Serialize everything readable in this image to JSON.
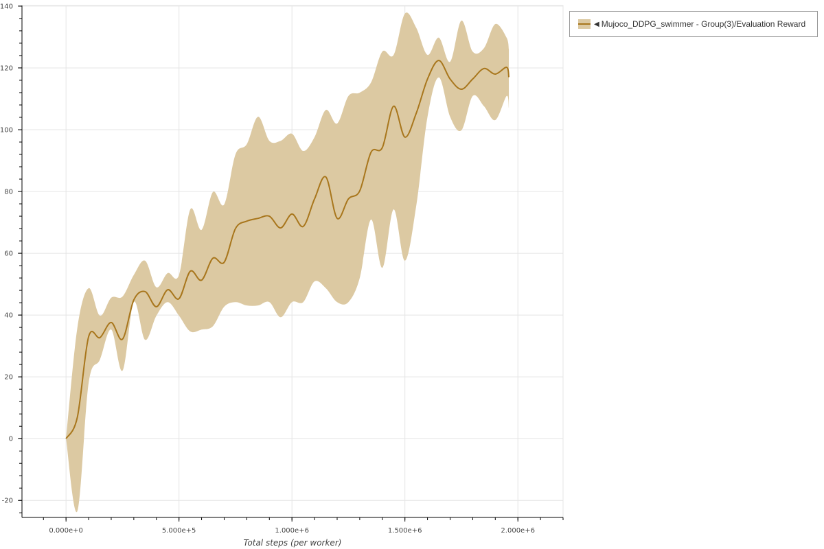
{
  "chart_data": {
    "type": "area",
    "title": "",
    "xlabel": "Total steps (per worker)",
    "ylabel": "",
    "xlim": [
      -195000,
      2200000
    ],
    "ylim": [
      -25.5,
      140.2
    ],
    "grid": true,
    "legend_placement": "outside-top-right",
    "x_ticks": [
      {
        "value": 0,
        "label": "0.000e+0"
      },
      {
        "value": 500000,
        "label": "5.000e+5"
      },
      {
        "value": 1000000,
        "label": "1.000e+6"
      },
      {
        "value": 1500000,
        "label": "1.500e+6"
      },
      {
        "value": 2000000,
        "label": "2.000e+6"
      }
    ],
    "y_ticks": [
      {
        "value": -20,
        "label": "-20"
      },
      {
        "value": 0,
        "label": "0"
      },
      {
        "value": 20,
        "label": "20"
      },
      {
        "value": 40,
        "label": "40"
      },
      {
        "value": 60,
        "label": "60"
      },
      {
        "value": 80,
        "label": "80"
      },
      {
        "value": 100,
        "label": "100"
      },
      {
        "value": 120,
        "label": "120"
      },
      {
        "value": 140,
        "label": "140"
      }
    ],
    "x_minor_step": 100000,
    "y_minor_step": 4,
    "colors": {
      "band": "#dcc9a2",
      "line": "#a8761c",
      "grid": "#e4e4e4"
    },
    "series": [
      {
        "name": "Mujoco_DDPG_swimmer - Group(3)/Evaluation Reward",
        "x": [
          0,
          50000,
          100000,
          150000,
          200000,
          250000,
          300000,
          350000,
          400000,
          450000,
          500000,
          550000,
          600000,
          650000,
          700000,
          750000,
          800000,
          850000,
          900000,
          950000,
          1000000,
          1050000,
          1100000,
          1150000,
          1200000,
          1250000,
          1300000,
          1350000,
          1400000,
          1450000,
          1500000,
          1550000,
          1600000,
          1650000,
          1700000,
          1750000,
          1800000,
          1850000,
          1900000,
          1950000,
          1960000
        ],
        "mean": [
          0,
          6.9,
          33,
          32.7,
          37.6,
          32.2,
          44.9,
          47.6,
          42.7,
          48.2,
          45.3,
          54.2,
          51.3,
          58.4,
          57.1,
          68,
          70.4,
          71.3,
          72,
          68.2,
          72.7,
          68.7,
          77.6,
          84.7,
          71.3,
          77.6,
          80.2,
          92.7,
          94.2,
          107.6,
          97.6,
          105.3,
          116.4,
          122.4,
          116.4,
          113.1,
          116.4,
          119.8,
          118,
          120.2,
          117
        ],
        "upper": [
          0,
          35.8,
          48.7,
          39.8,
          45.6,
          46,
          53,
          57.6,
          49,
          53.6,
          53,
          74.2,
          67.6,
          79.8,
          75.8,
          92,
          95.3,
          104.2,
          96.4,
          96.4,
          98.7,
          93.1,
          97.6,
          106.4,
          102,
          110.9,
          112,
          115.3,
          125.3,
          124.2,
          137.6,
          133,
          124.2,
          129.8,
          122,
          135.3,
          125.3,
          126.4,
          134.2,
          129.8,
          126
        ],
        "lower": [
          0,
          -23.5,
          18,
          25.6,
          35.3,
          22,
          44.2,
          32,
          39.8,
          44.2,
          39.8,
          34.7,
          35.3,
          36.4,
          42.7,
          44.2,
          43.1,
          43.1,
          44.2,
          39.3,
          44.2,
          44.2,
          50.9,
          48.7,
          44.2,
          44.2,
          52,
          70.9,
          55.3,
          74.2,
          57.6,
          75.3,
          104.2,
          116.9,
          104.2,
          99.8,
          110.9,
          107.6,
          103.1,
          110.9,
          107
        ]
      }
    ]
  }
}
